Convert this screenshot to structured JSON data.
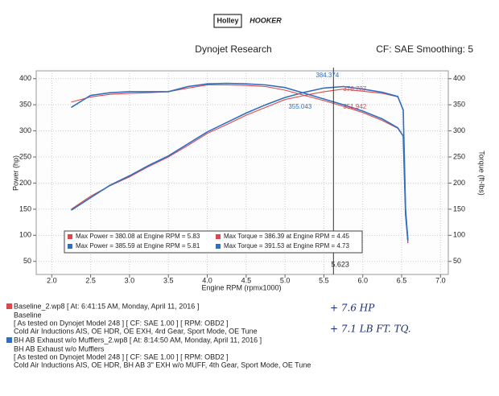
{
  "header": {
    "logo_left": "Holley",
    "logo_right": "HOOKER",
    "company": "Dynojet Research",
    "settings": "CF: SAE Smoothing: 5"
  },
  "chart_data": {
    "type": "line",
    "y_label": "Power (hp)",
    "y2_label": "Torque (ft-lbs)",
    "x_label": "Engine RPM (rpmx1000)",
    "x": [
      2.25,
      2.5,
      2.75,
      3.0,
      3.25,
      3.5,
      3.75,
      4.0,
      4.25,
      4.5,
      4.75,
      5.0,
      5.25,
      5.5,
      5.75,
      6.0,
      6.25,
      6.45,
      6.52,
      6.55,
      6.58
    ],
    "series": [
      {
        "name": "Max Power = 380.08 at Engine RPM = 5.83",
        "color": "#e0474c",
        "values": [
          150,
          175,
          195,
          212,
          232,
          250,
          272,
          295,
          312,
          330,
          345,
          360,
          368,
          375,
          380,
          376,
          372,
          365,
          340,
          150,
          85
        ]
      },
      {
        "name": "Max Power = 385.59 at Engine RPM = 5.81",
        "color": "#2f6fc0",
        "values": [
          148,
          172,
          196,
          214,
          234,
          252,
          275,
          298,
          316,
          334,
          350,
          364,
          374,
          382,
          385,
          380,
          374,
          366,
          340,
          150,
          90
        ]
      },
      {
        "name": "Max Torque = 386.39 at Engine RPM = 4.45",
        "color": "#e0474c",
        "axis": "y2",
        "values": [
          355,
          365,
          370,
          372,
          373,
          375,
          382,
          388,
          388,
          387,
          385,
          378,
          368,
          358,
          347,
          335,
          320,
          305,
          290,
          140,
          85
        ]
      },
      {
        "name": "Max Torque = 391.53 at Engine RPM = 4.73",
        "color": "#2f6fc0",
        "axis": "y2",
        "values": [
          345,
          368,
          373,
          375,
          375,
          375,
          385,
          390,
          391,
          390,
          388,
          383,
          372,
          361,
          350,
          338,
          323,
          306,
          290,
          140,
          90
        ]
      }
    ],
    "xlim": [
      1.8,
      7.1
    ],
    "xticks": [
      {
        "value": 2,
        "label": "2.0"
      },
      2.5,
      {
        "value": 3,
        "label": "3.0"
      },
      3.5,
      {
        "value": 4,
        "label": "4.0"
      },
      4.5,
      {
        "value": 5,
        "label": "5.0"
      },
      5.5,
      {
        "value": 6,
        "label": "6.0"
      },
      6.5,
      {
        "value": 7,
        "label": "7.0"
      }
    ],
    "ylim": [
      25,
      415
    ],
    "yticks": [
      50,
      100,
      150,
      200,
      250,
      300,
      350,
      400
    ],
    "y2lim": [
      25,
      415
    ],
    "y2ticks": [
      50,
      100,
      150,
      200,
      250,
      300,
      350,
      400
    ],
    "grid": true,
    "cursor": {
      "x": 5.623,
      "readouts": [
        384.374,
        376.727,
        355.043,
        351.942
      ]
    }
  },
  "runs": [
    {
      "file": "Baseline_2.wp8 [ At: 6:41:15 AM, Monday, April 11, 2016 ]",
      "name": "Baseline",
      "test": "[ As tested on Dynojet Model 248 ]  [ CF: SAE 1.00 ]  [ RPM: OBD2 ]",
      "notes": "Cold Air Inductions AIS, OE HDR, OE EXH, 4rd Gear, Sport Mode, OE Tune"
    },
    {
      "file": "BH AB Exhaust w/o Mufflers_2.wp8 [ At: 8:14:50 AM, Monday, April 11, 2016 ]",
      "name": "BH AB Exhaust w/o Mufflers",
      "test": "[ As tested on Dynojet Model 248 ]  [ CF: SAE 1.00 ]  [ RPM: OBD2 ]",
      "notes": "Cold Air Inductions AIS, OE HDR, BH AB 3\" EXH w/o MUFF, 4th Gear, Sport Mode, OE Tune"
    }
  ],
  "handwritten": [
    "+ 7.6 HP",
    "+ 7.1 LB FT. TQ."
  ]
}
